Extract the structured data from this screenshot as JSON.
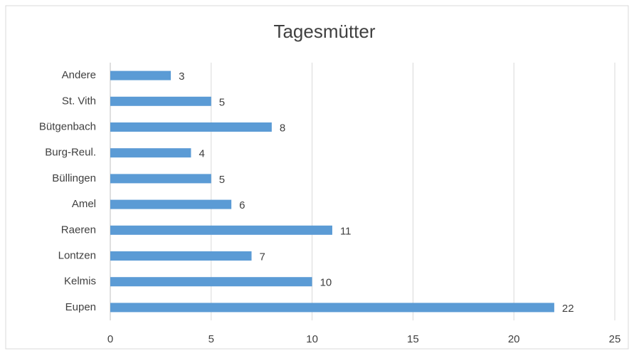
{
  "chart_data": {
    "type": "bar",
    "orientation": "horizontal",
    "title": "Tagesmütter",
    "categories": [
      "Andere",
      "St. Vith",
      "Bütgenbach",
      "Burg-Reul.",
      "Büllingen",
      "Amel",
      "Raeren",
      "Lontzen",
      "Kelmis",
      "Eupen"
    ],
    "values": [
      3,
      5,
      8,
      4,
      5,
      6,
      11,
      7,
      10,
      22
    ],
    "color": "#5b9bd5",
    "xlim": [
      0,
      25
    ],
    "xticks": [
      0,
      5,
      10,
      15,
      20,
      25
    ],
    "grid": true
  }
}
